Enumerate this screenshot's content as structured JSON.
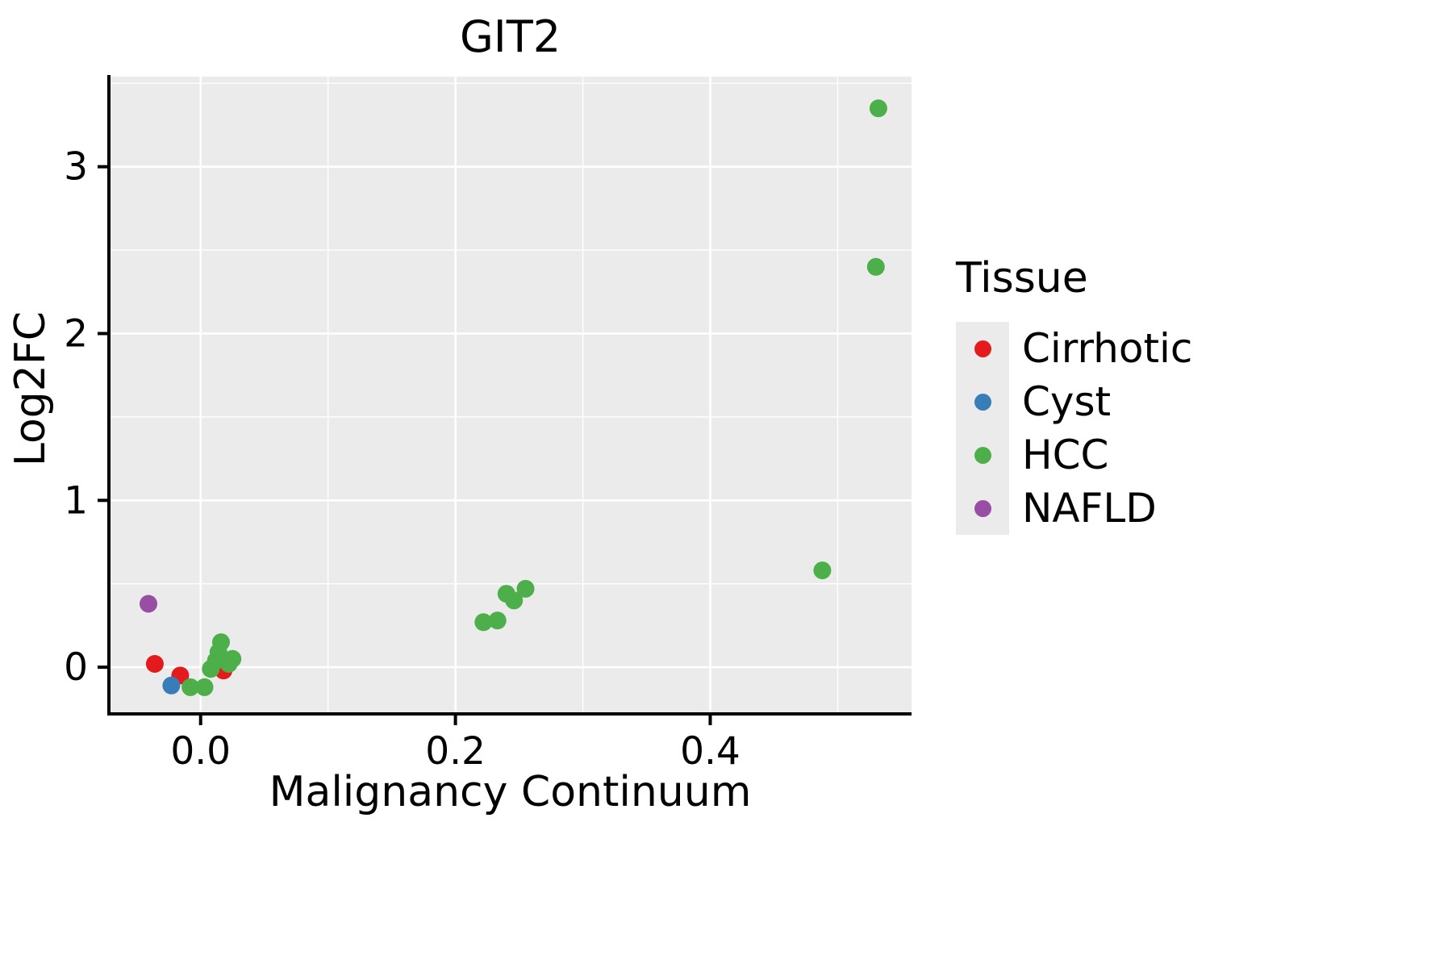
{
  "chart_data": {
    "type": "scatter",
    "title": "GIT2",
    "xlabel": "Malignancy Continuum",
    "ylabel": "Log2FC",
    "xlim": [
      -0.072,
      0.558
    ],
    "ylim": [
      -0.28,
      3.54
    ],
    "xticks": [
      0.0,
      0.2,
      0.4
    ],
    "xtick_labels": [
      "0.0",
      "0.2",
      "0.4"
    ],
    "yticks": [
      0,
      1,
      2,
      3
    ],
    "ytick_labels": [
      "0",
      "1",
      "2",
      "3"
    ],
    "x_minor_ticks": [
      0.1,
      0.3,
      0.5
    ],
    "y_minor_ticks": [
      0.5,
      1.5,
      2.5,
      3.5
    ],
    "panel_bg": "#EBEBEB",
    "grid_color": "#FFFFFF",
    "axis_color": "#000000",
    "grid": true,
    "legend": {
      "title": "Tissue",
      "position": "right",
      "entries": [
        "Cirrhotic",
        "Cyst",
        "HCC",
        "NAFLD"
      ]
    },
    "series": [
      {
        "name": "Cirrhotic",
        "color": "#E41A1C",
        "points": [
          [
            -0.036,
            0.02
          ],
          [
            -0.016,
            -0.05
          ],
          [
            0.018,
            -0.02
          ]
        ]
      },
      {
        "name": "Cyst",
        "color": "#377EB8",
        "points": [
          [
            -0.023,
            -0.11
          ]
        ]
      },
      {
        "name": "HCC",
        "color": "#4DAF4A",
        "points": [
          [
            -0.008,
            -0.12
          ],
          [
            0.003,
            -0.12
          ],
          [
            0.008,
            -0.01
          ],
          [
            0.012,
            0.04
          ],
          [
            0.014,
            0.09
          ],
          [
            0.016,
            0.15
          ],
          [
            0.022,
            0.02
          ],
          [
            0.025,
            0.05
          ],
          [
            0.222,
            0.27
          ],
          [
            0.233,
            0.28
          ],
          [
            0.24,
            0.44
          ],
          [
            0.246,
            0.4
          ],
          [
            0.255,
            0.47
          ],
          [
            0.488,
            0.58
          ],
          [
            0.53,
            2.4
          ],
          [
            0.532,
            3.35
          ]
        ]
      },
      {
        "name": "NAFLD",
        "color": "#984EA3",
        "points": [
          [
            -0.041,
            0.38
          ]
        ]
      }
    ]
  }
}
